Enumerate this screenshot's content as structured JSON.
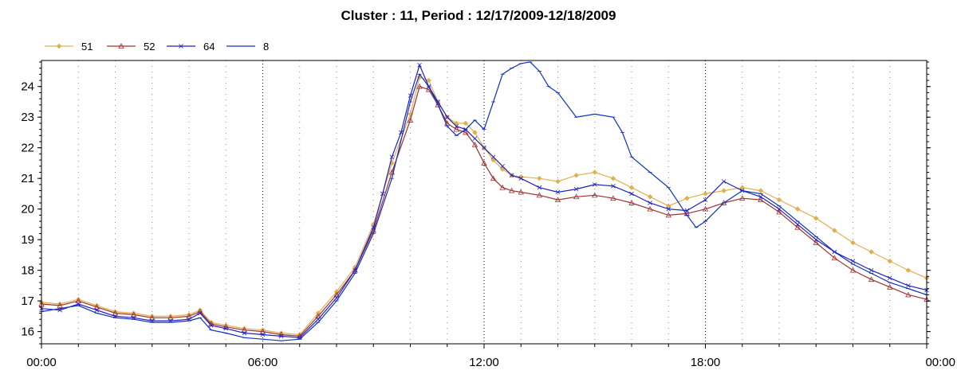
{
  "chart_data": {
    "type": "line",
    "title": "Cluster : 11, Period : 12/17/2009-12/18/2009",
    "xlabel": "",
    "ylabel": "",
    "xlim": [
      0,
      24
    ],
    "ylim": [
      15.6,
      24.85
    ],
    "x_ticks": [
      "00:00",
      "06:00",
      "12:00",
      "18:00",
      "00:00"
    ],
    "y_ticks": [
      16,
      17,
      18,
      19,
      20,
      21,
      22,
      23,
      24
    ],
    "grid": "dotted vertical lines",
    "legend_position": "top-left",
    "series": [
      {
        "name": "51",
        "color": "#e0b050",
        "marker": "diamond",
        "x": [
          0,
          0.5,
          1,
          1.5,
          2,
          2.5,
          3,
          3.5,
          4,
          4.3,
          4.6,
          5,
          5.5,
          6,
          6.5,
          7,
          7.5,
          8,
          8.5,
          9,
          9.5,
          10,
          10.25,
          10.5,
          10.75,
          11,
          11.25,
          11.5,
          11.75,
          12,
          12.25,
          12.5,
          12.75,
          13,
          13.5,
          14,
          14.5,
          15,
          15.5,
          16,
          16.5,
          17,
          17.5,
          18,
          18.5,
          19,
          19.5,
          20,
          20.5,
          21,
          21.5,
          22,
          22.5,
          23,
          23.5,
          24
        ],
        "values": [
          16.95,
          16.9,
          17.05,
          16.85,
          16.65,
          16.6,
          16.5,
          16.5,
          16.55,
          16.7,
          16.3,
          16.2,
          16.1,
          16.05,
          15.95,
          15.9,
          16.6,
          17.3,
          18.1,
          19.5,
          21.5,
          23.1,
          24.3,
          24.2,
          23.5,
          23.0,
          22.8,
          22.8,
          22.5,
          22.0,
          21.6,
          21.3,
          21.1,
          21.05,
          21.0,
          20.9,
          21.1,
          21.2,
          21.0,
          20.7,
          20.4,
          20.1,
          20.35,
          20.5,
          20.6,
          20.7,
          20.6,
          20.3,
          20.0,
          19.7,
          19.3,
          18.9,
          18.6,
          18.3,
          18.0,
          17.75
        ]
      },
      {
        "name": "52",
        "color": "#a03030",
        "marker": "triangle",
        "x": [
          0,
          0.5,
          1,
          1.5,
          2,
          2.5,
          3,
          3.5,
          4,
          4.3,
          4.6,
          5,
          5.5,
          6,
          6.5,
          7,
          7.5,
          8,
          8.5,
          9,
          9.5,
          10,
          10.25,
          10.5,
          10.75,
          11,
          11.25,
          11.5,
          11.75,
          12,
          12.25,
          12.5,
          12.75,
          13,
          13.5,
          14,
          14.5,
          15,
          15.5,
          16,
          16.5,
          17,
          17.5,
          18,
          18.5,
          19,
          19.5,
          20,
          20.5,
          21,
          21.5,
          22,
          22.5,
          23,
          23.5,
          24
        ],
        "values": [
          16.9,
          16.85,
          17.0,
          16.8,
          16.6,
          16.55,
          16.45,
          16.45,
          16.5,
          16.65,
          16.25,
          16.15,
          16.05,
          16.0,
          15.9,
          15.85,
          16.5,
          17.2,
          18.0,
          19.3,
          21.2,
          22.9,
          24.0,
          23.9,
          23.4,
          22.8,
          22.6,
          22.5,
          22.1,
          21.5,
          21.0,
          20.7,
          20.6,
          20.55,
          20.45,
          20.3,
          20.4,
          20.45,
          20.35,
          20.2,
          20.0,
          19.8,
          19.85,
          20.0,
          20.2,
          20.35,
          20.3,
          19.9,
          19.4,
          18.9,
          18.4,
          18.0,
          17.7,
          17.45,
          17.2,
          17.05
        ]
      },
      {
        "name": "64",
        "color": "#2020c0",
        "marker": "x",
        "x": [
          0,
          0.5,
          1,
          1.5,
          2,
          2.5,
          3,
          3.5,
          4,
          4.3,
          4.6,
          5,
          5.5,
          6,
          6.5,
          7,
          7.5,
          8,
          8.5,
          9,
          9.25,
          9.5,
          9.75,
          10,
          10.25,
          10.5,
          10.75,
          11,
          11.25,
          11.5,
          11.75,
          12,
          12.25,
          12.5,
          12.75,
          13,
          13.5,
          14,
          14.5,
          15,
          15.5,
          16,
          16.5,
          17,
          17.5,
          18,
          18.5,
          19,
          19.5,
          20,
          20.5,
          21,
          21.5,
          22,
          22.5,
          23,
          23.5,
          24
        ],
        "values": [
          16.75,
          16.7,
          16.9,
          16.7,
          16.5,
          16.45,
          16.35,
          16.35,
          16.4,
          16.6,
          16.2,
          16.1,
          15.95,
          15.9,
          15.85,
          15.8,
          16.4,
          17.1,
          18.0,
          19.4,
          20.5,
          21.7,
          22.5,
          23.7,
          24.7,
          24.0,
          23.5,
          23.0,
          22.7,
          22.6,
          22.3,
          22.0,
          21.7,
          21.4,
          21.1,
          21.0,
          20.7,
          20.55,
          20.65,
          20.8,
          20.75,
          20.5,
          20.2,
          20.0,
          19.95,
          20.3,
          20.9,
          20.6,
          20.4,
          20.0,
          19.5,
          19.0,
          18.6,
          18.3,
          18.0,
          17.75,
          17.5,
          17.35
        ]
      },
      {
        "name": "8",
        "color": "#1030c0",
        "marker": "dash",
        "x": [
          0,
          0.5,
          1,
          1.5,
          2,
          2.5,
          3,
          3.5,
          4,
          4.3,
          4.6,
          5,
          5.5,
          6,
          6.5,
          7,
          7.5,
          8,
          8.5,
          9,
          9.5,
          10,
          10.25,
          10.5,
          10.75,
          11,
          11.25,
          11.5,
          11.75,
          12,
          12.25,
          12.5,
          12.75,
          13,
          13.25,
          13.5,
          13.75,
          14,
          14.5,
          15,
          15.5,
          15.75,
          16,
          16.5,
          17,
          17.5,
          17.75,
          18,
          18.5,
          19,
          19.5,
          20,
          20.5,
          21,
          21.5,
          22,
          22.5,
          23,
          23.5,
          24
        ],
        "values": [
          16.65,
          16.75,
          16.85,
          16.6,
          16.45,
          16.4,
          16.3,
          16.3,
          16.35,
          16.45,
          16.05,
          15.95,
          15.8,
          15.75,
          15.7,
          15.75,
          16.3,
          17.0,
          17.9,
          19.2,
          21.0,
          23.5,
          24.4,
          24.0,
          23.4,
          22.7,
          22.4,
          22.6,
          22.9,
          22.6,
          23.5,
          24.4,
          24.6,
          24.75,
          24.8,
          24.5,
          24.0,
          23.8,
          23.0,
          23.1,
          23.0,
          22.5,
          21.7,
          21.2,
          20.7,
          19.8,
          19.4,
          19.6,
          20.2,
          20.6,
          20.5,
          20.1,
          19.6,
          19.1,
          18.6,
          18.2,
          17.9,
          17.6,
          17.4,
          17.2
        ]
      }
    ]
  }
}
